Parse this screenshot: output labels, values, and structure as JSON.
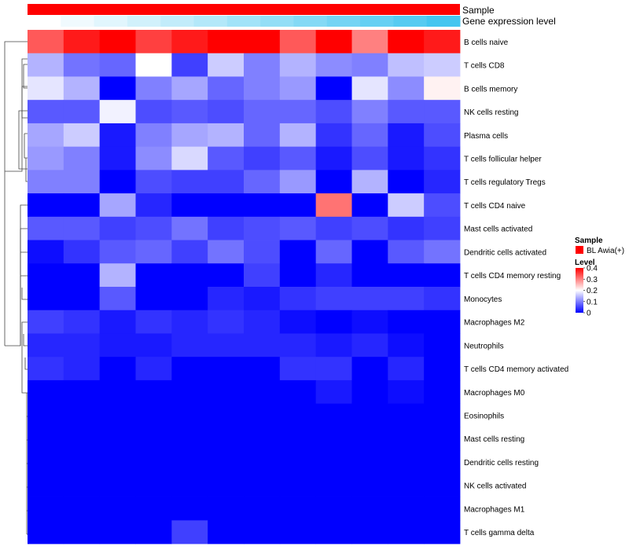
{
  "chart_data": {
    "type": "heatmap",
    "annotation_tracks": [
      "Sample",
      "Gene expression level"
    ],
    "sample_track": {
      "label": "Sample",
      "value": "BL Awia(+)",
      "color": "#FF0000"
    },
    "expression_track": {
      "label": "Gene expression level",
      "values": [
        0.0,
        0.08,
        0.16,
        0.25,
        0.33,
        0.41,
        0.5,
        0.58,
        0.66,
        0.75,
        0.83,
        0.91,
        1.0
      ],
      "low_color": "#FFFFFF",
      "high_color": "#45C6F0"
    },
    "rows": [
      "B cells naive",
      "T cells CD8",
      "B cells memory",
      "NK cells resting",
      "Plasma cells",
      "T cells follicular helper",
      "T cells regulatory  Tregs",
      "T cells CD4 naive",
      "Mast cells activated",
      "Dendritic cells activated",
      "T cells CD4 memory resting",
      "Monocytes",
      "Macrophages M2",
      "Neutrophils",
      "T cells CD4 memory activated",
      "Macrophages M0",
      "Eosinophils",
      "Mast cells resting",
      "Dendritic cells resting",
      "NK cells activated",
      "Macrophages M1",
      "T cells gamma delta"
    ],
    "n_columns": 12,
    "values": [
      [
        0.33,
        0.38,
        0.42,
        0.35,
        0.38,
        0.4,
        0.42,
        0.33,
        0.4,
        0.3,
        0.42,
        0.38
      ],
      [
        0.14,
        0.09,
        0.08,
        0.2,
        0.05,
        0.16,
        0.1,
        0.14,
        0.11,
        0.1,
        0.15,
        0.16
      ],
      [
        0.18,
        0.14,
        0.0,
        0.1,
        0.13,
        0.08,
        0.1,
        0.12,
        0.0,
        0.18,
        0.11,
        0.21
      ],
      [
        0.07,
        0.07,
        0.19,
        0.06,
        0.07,
        0.06,
        0.08,
        0.08,
        0.06,
        0.1,
        0.07,
        0.07
      ],
      [
        0.13,
        0.16,
        0.02,
        0.1,
        0.13,
        0.14,
        0.08,
        0.14,
        0.04,
        0.08,
        0.02,
        0.06
      ],
      [
        0.12,
        0.1,
        0.02,
        0.11,
        0.17,
        0.07,
        0.05,
        0.07,
        0.02,
        0.06,
        0.02,
        0.04
      ],
      [
        0.1,
        0.1,
        0.0,
        0.06,
        0.05,
        0.05,
        0.08,
        0.12,
        0.0,
        0.14,
        0.0,
        0.03
      ],
      [
        0.0,
        0.0,
        0.13,
        0.03,
        0.0,
        0.0,
        0.0,
        0.0,
        0.31,
        0.0,
        0.16,
        0.06
      ],
      [
        0.07,
        0.07,
        0.05,
        0.06,
        0.09,
        0.05,
        0.06,
        0.07,
        0.05,
        0.06,
        0.04,
        0.05
      ],
      [
        0.01,
        0.04,
        0.07,
        0.08,
        0.05,
        0.09,
        0.06,
        0.0,
        0.08,
        0.0,
        0.07,
        0.09
      ],
      [
        0.0,
        0.0,
        0.14,
        0.0,
        0.0,
        0.0,
        0.05,
        0.0,
        0.03,
        0.0,
        0.0,
        0.0
      ],
      [
        0.0,
        0.0,
        0.07,
        0.0,
        0.0,
        0.03,
        0.02,
        0.04,
        0.05,
        0.05,
        0.05,
        0.04
      ],
      [
        0.05,
        0.04,
        0.02,
        0.04,
        0.03,
        0.04,
        0.03,
        0.01,
        0.0,
        0.01,
        0.0,
        0.0
      ],
      [
        0.03,
        0.03,
        0.02,
        0.02,
        0.03,
        0.03,
        0.03,
        0.03,
        0.02,
        0.03,
        0.01,
        0.0
      ],
      [
        0.04,
        0.03,
        0.0,
        0.03,
        0.0,
        0.0,
        0.0,
        0.04,
        0.04,
        0.0,
        0.03,
        0.0
      ],
      [
        0.0,
        0.0,
        0.0,
        0.0,
        0.0,
        0.0,
        0.0,
        0.0,
        0.02,
        0.0,
        0.01,
        0.0
      ],
      [
        0.0,
        0.0,
        0.0,
        0.0,
        0.0,
        0.0,
        0.0,
        0.0,
        0.0,
        0.0,
        0.0,
        0.0
      ],
      [
        0.0,
        0.0,
        0.0,
        0.0,
        0.0,
        0.0,
        0.0,
        0.0,
        0.0,
        0.0,
        0.0,
        0.0
      ],
      [
        0.0,
        0.0,
        0.0,
        0.0,
        0.0,
        0.0,
        0.0,
        0.0,
        0.0,
        0.0,
        0.0,
        0.0
      ],
      [
        0.0,
        0.0,
        0.0,
        0.0,
        0.0,
        0.0,
        0.0,
        0.0,
        0.0,
        0.0,
        0.0,
        0.0
      ],
      [
        0.0,
        0.0,
        0.0,
        0.0,
        0.0,
        0.0,
        0.0,
        0.0,
        0.0,
        0.0,
        0.0,
        0.0
      ],
      [
        0.0,
        0.0,
        0.0,
        0.0,
        0.05,
        0.0,
        0.0,
        0.0,
        0.0,
        0.0,
        0.0,
        0.0
      ]
    ],
    "color_scale": {
      "min": 0,
      "mid": 0.2,
      "max": 0.4,
      "low": "#0000FF",
      "mid_color": "#FFFFFF",
      "high": "#FF0000"
    },
    "legend": {
      "sample_title": "Sample",
      "sample_entry": "BL Awia(+)",
      "level_title": "Level",
      "ticks": [
        {
          "value": 0.4,
          "label": "0.4"
        },
        {
          "value": 0.3,
          "label": "0.3"
        },
        {
          "value": 0.2,
          "label": "0.2"
        },
        {
          "value": 0.1,
          "label": "0.1"
        },
        {
          "value": 0,
          "label": "0"
        }
      ],
      "placement": "right"
    },
    "row_dendrogram": true
  }
}
